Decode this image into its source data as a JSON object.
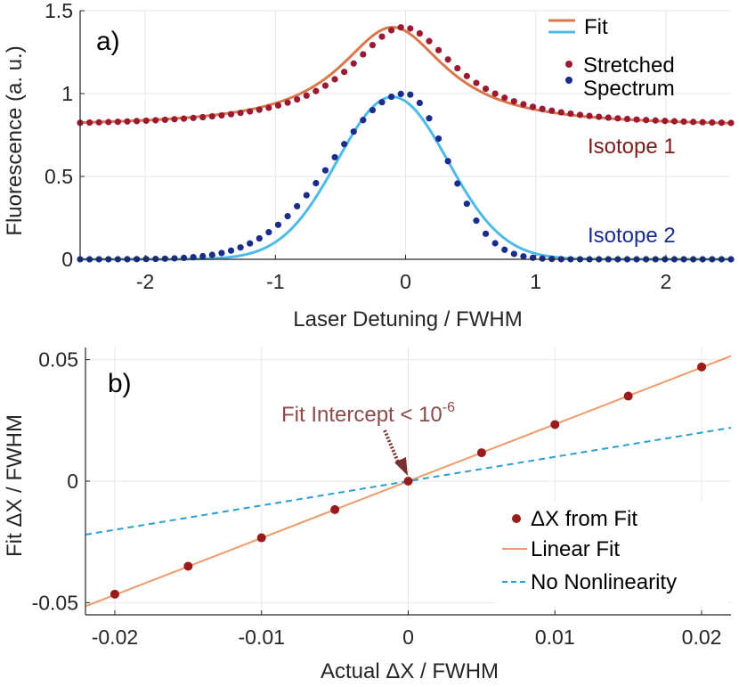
{
  "chart_data": [
    {
      "panel": "a)",
      "type": "line",
      "xlabel": "Laser Detuning / FWHM",
      "ylabel": "Fluorescence (a. u.)",
      "xlim": [
        -2.5,
        2.5
      ],
      "ylim": [
        0,
        1.5
      ],
      "xticks": [
        -2,
        -1,
        0,
        1,
        2
      ],
      "xtick_labels": [
        "-2",
        "-1",
        "0",
        "1",
        "2"
      ],
      "yticks": [
        0,
        0.5,
        1,
        1.5
      ],
      "ytick_labels": [
        "0",
        "0.5",
        "1",
        "1.5"
      ],
      "grid": true,
      "legend": {
        "position": "top-right",
        "fit": "Fit",
        "stretched": "Stretched",
        "spectrum": "Spectrum"
      },
      "annotations": {
        "isotope1": "Isotope 1",
        "isotope2": "Isotope 2"
      },
      "series": [
        {
          "name": "Isotope 1 Fit",
          "kind": "line",
          "color": "#d9784a",
          "shape": "lorentzian",
          "center": -0.1,
          "amplitude": 0.6,
          "offset": 0.8,
          "fwhm": 1.0,
          "x_range": [
            -2.5,
            2.5
          ]
        },
        {
          "name": "Isotope 1 Stretched Spectrum",
          "kind": "dots",
          "color": "#9b1a33",
          "shape": "lorentzian",
          "center": -0.02,
          "amplitude": 0.6,
          "offset": 0.8,
          "fwhm": 1.0,
          "x_range": [
            -2.5,
            2.5
          ],
          "n_points": 70
        },
        {
          "name": "Isotope 2 Fit",
          "kind": "line",
          "color": "#4dbbe8",
          "shape": "gaussian",
          "center": -0.1,
          "amplitude": 0.98,
          "offset": 0,
          "fwhm": 1.0,
          "x_range": [
            -2.5,
            2.5
          ]
        },
        {
          "name": "Isotope 2 Stretched Spectrum",
          "kind": "dots",
          "color": "#1a2c8c",
          "shape": "skewed-gaussian",
          "center": 0.0,
          "amplitude": 1.0,
          "offset": 0,
          "fwhm_left": 1.3,
          "fwhm_right": 0.75,
          "x_range": [
            -2.5,
            2.5
          ],
          "n_points": 70
        }
      ]
    },
    {
      "panel": "b)",
      "type": "scatter",
      "xlabel": "Actual ΔX / FWHM",
      "ylabel": "Fit ΔX / FWHM",
      "xlim": [
        -0.022,
        0.022
      ],
      "ylim": [
        -0.055,
        0.055
      ],
      "xticks": [
        -0.02,
        -0.01,
        0,
        0.01,
        0.02
      ],
      "xtick_labels": [
        "-0.02",
        "-0.01",
        "0",
        "0.01",
        "0.02"
      ],
      "yticks": [
        -0.05,
        0,
        0.05
      ],
      "ytick_labels": [
        "-0.05",
        "0",
        "0.05"
      ],
      "grid": true,
      "legend": {
        "position": "bottom-right",
        "points": "ΔX from Fit",
        "linear": "Linear Fit",
        "nonlin": "No Nonlinearity"
      },
      "annotation": {
        "text": "Fit Intercept < 10",
        "superscript": "-6"
      },
      "series": [
        {
          "name": "ΔX from Fit",
          "kind": "dots",
          "color": "#9b1a1a",
          "x": [
            -0.02,
            -0.015,
            -0.01,
            -0.005,
            0,
            0.005,
            0.01,
            0.015,
            0.02
          ],
          "y": [
            -0.0465,
            -0.035,
            -0.0233,
            -0.0117,
            0,
            0.0117,
            0.0233,
            0.035,
            0.047
          ]
        },
        {
          "name": "Linear Fit",
          "kind": "line",
          "color": "#f09a6a",
          "slope": 2.34,
          "intercept": 0,
          "x_range": [
            -0.022,
            0.022
          ]
        },
        {
          "name": "No Nonlinearity",
          "kind": "dashed",
          "color": "#2a9fd0",
          "slope": 1.0,
          "intercept": 0,
          "x_range": [
            -0.022,
            0.022
          ]
        }
      ]
    }
  ]
}
